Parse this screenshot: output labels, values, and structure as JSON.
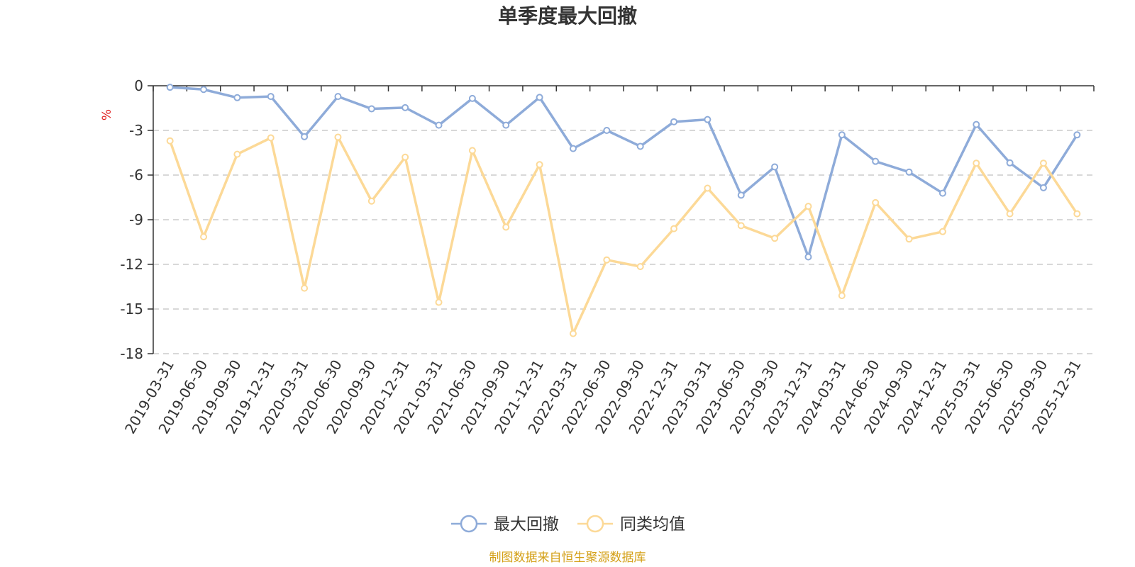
{
  "chart_data": {
    "type": "line",
    "title": "单季度最大回撤",
    "ylabel": "%",
    "ylim": [
      -18,
      0
    ],
    "yticks": [
      0,
      -3,
      -6,
      -9,
      -12,
      -15,
      -18
    ],
    "grid": true,
    "legend_position": "bottom-center",
    "categories": [
      "2019-03-31",
      "2019-06-30",
      "2019-09-30",
      "2019-12-31",
      "2020-03-31",
      "2020-06-30",
      "2020-09-30",
      "2020-12-31",
      "2021-03-31",
      "2021-06-30",
      "2021-09-30",
      "2021-12-31",
      "2022-03-31",
      "2022-06-30",
      "2022-09-30",
      "2022-12-31",
      "2023-03-31",
      "2023-06-30",
      "2023-09-30",
      "2023-12-31",
      "2024-03-31",
      "2024-06-30",
      "2024-09-30",
      "2024-12-31",
      "2025-03-31",
      "2025-06-30",
      "2025-09-30",
      "2025-12-31"
    ],
    "series": [
      {
        "name": "最大回撤",
        "color": "#8eabd9",
        "values": [
          -0.1,
          -0.25,
          -0.8,
          -0.72,
          -3.42,
          -0.72,
          -1.55,
          -1.47,
          -2.65,
          -0.85,
          -2.65,
          -0.78,
          -4.22,
          -3.0,
          -4.07,
          -2.42,
          -2.27,
          -7.35,
          -5.45,
          -11.5,
          -3.3,
          -5.08,
          -5.8,
          -7.22,
          -2.6,
          -5.18,
          -6.85,
          -3.3
        ]
      },
      {
        "name": "同类均值",
        "color": "#fcd997",
        "values": [
          -3.7,
          -10.15,
          -4.6,
          -3.5,
          -13.6,
          -3.45,
          -7.75,
          -4.8,
          -14.55,
          -4.35,
          -9.5,
          -5.3,
          -16.65,
          -11.7,
          -12.15,
          -9.6,
          -6.88,
          -9.4,
          -10.25,
          -8.1,
          -14.1,
          -7.85,
          -10.3,
          -9.8,
          -5.2,
          -8.6,
          -5.2,
          -8.6
        ]
      }
    ],
    "source": "制图数据来自恒生聚源数据库"
  }
}
